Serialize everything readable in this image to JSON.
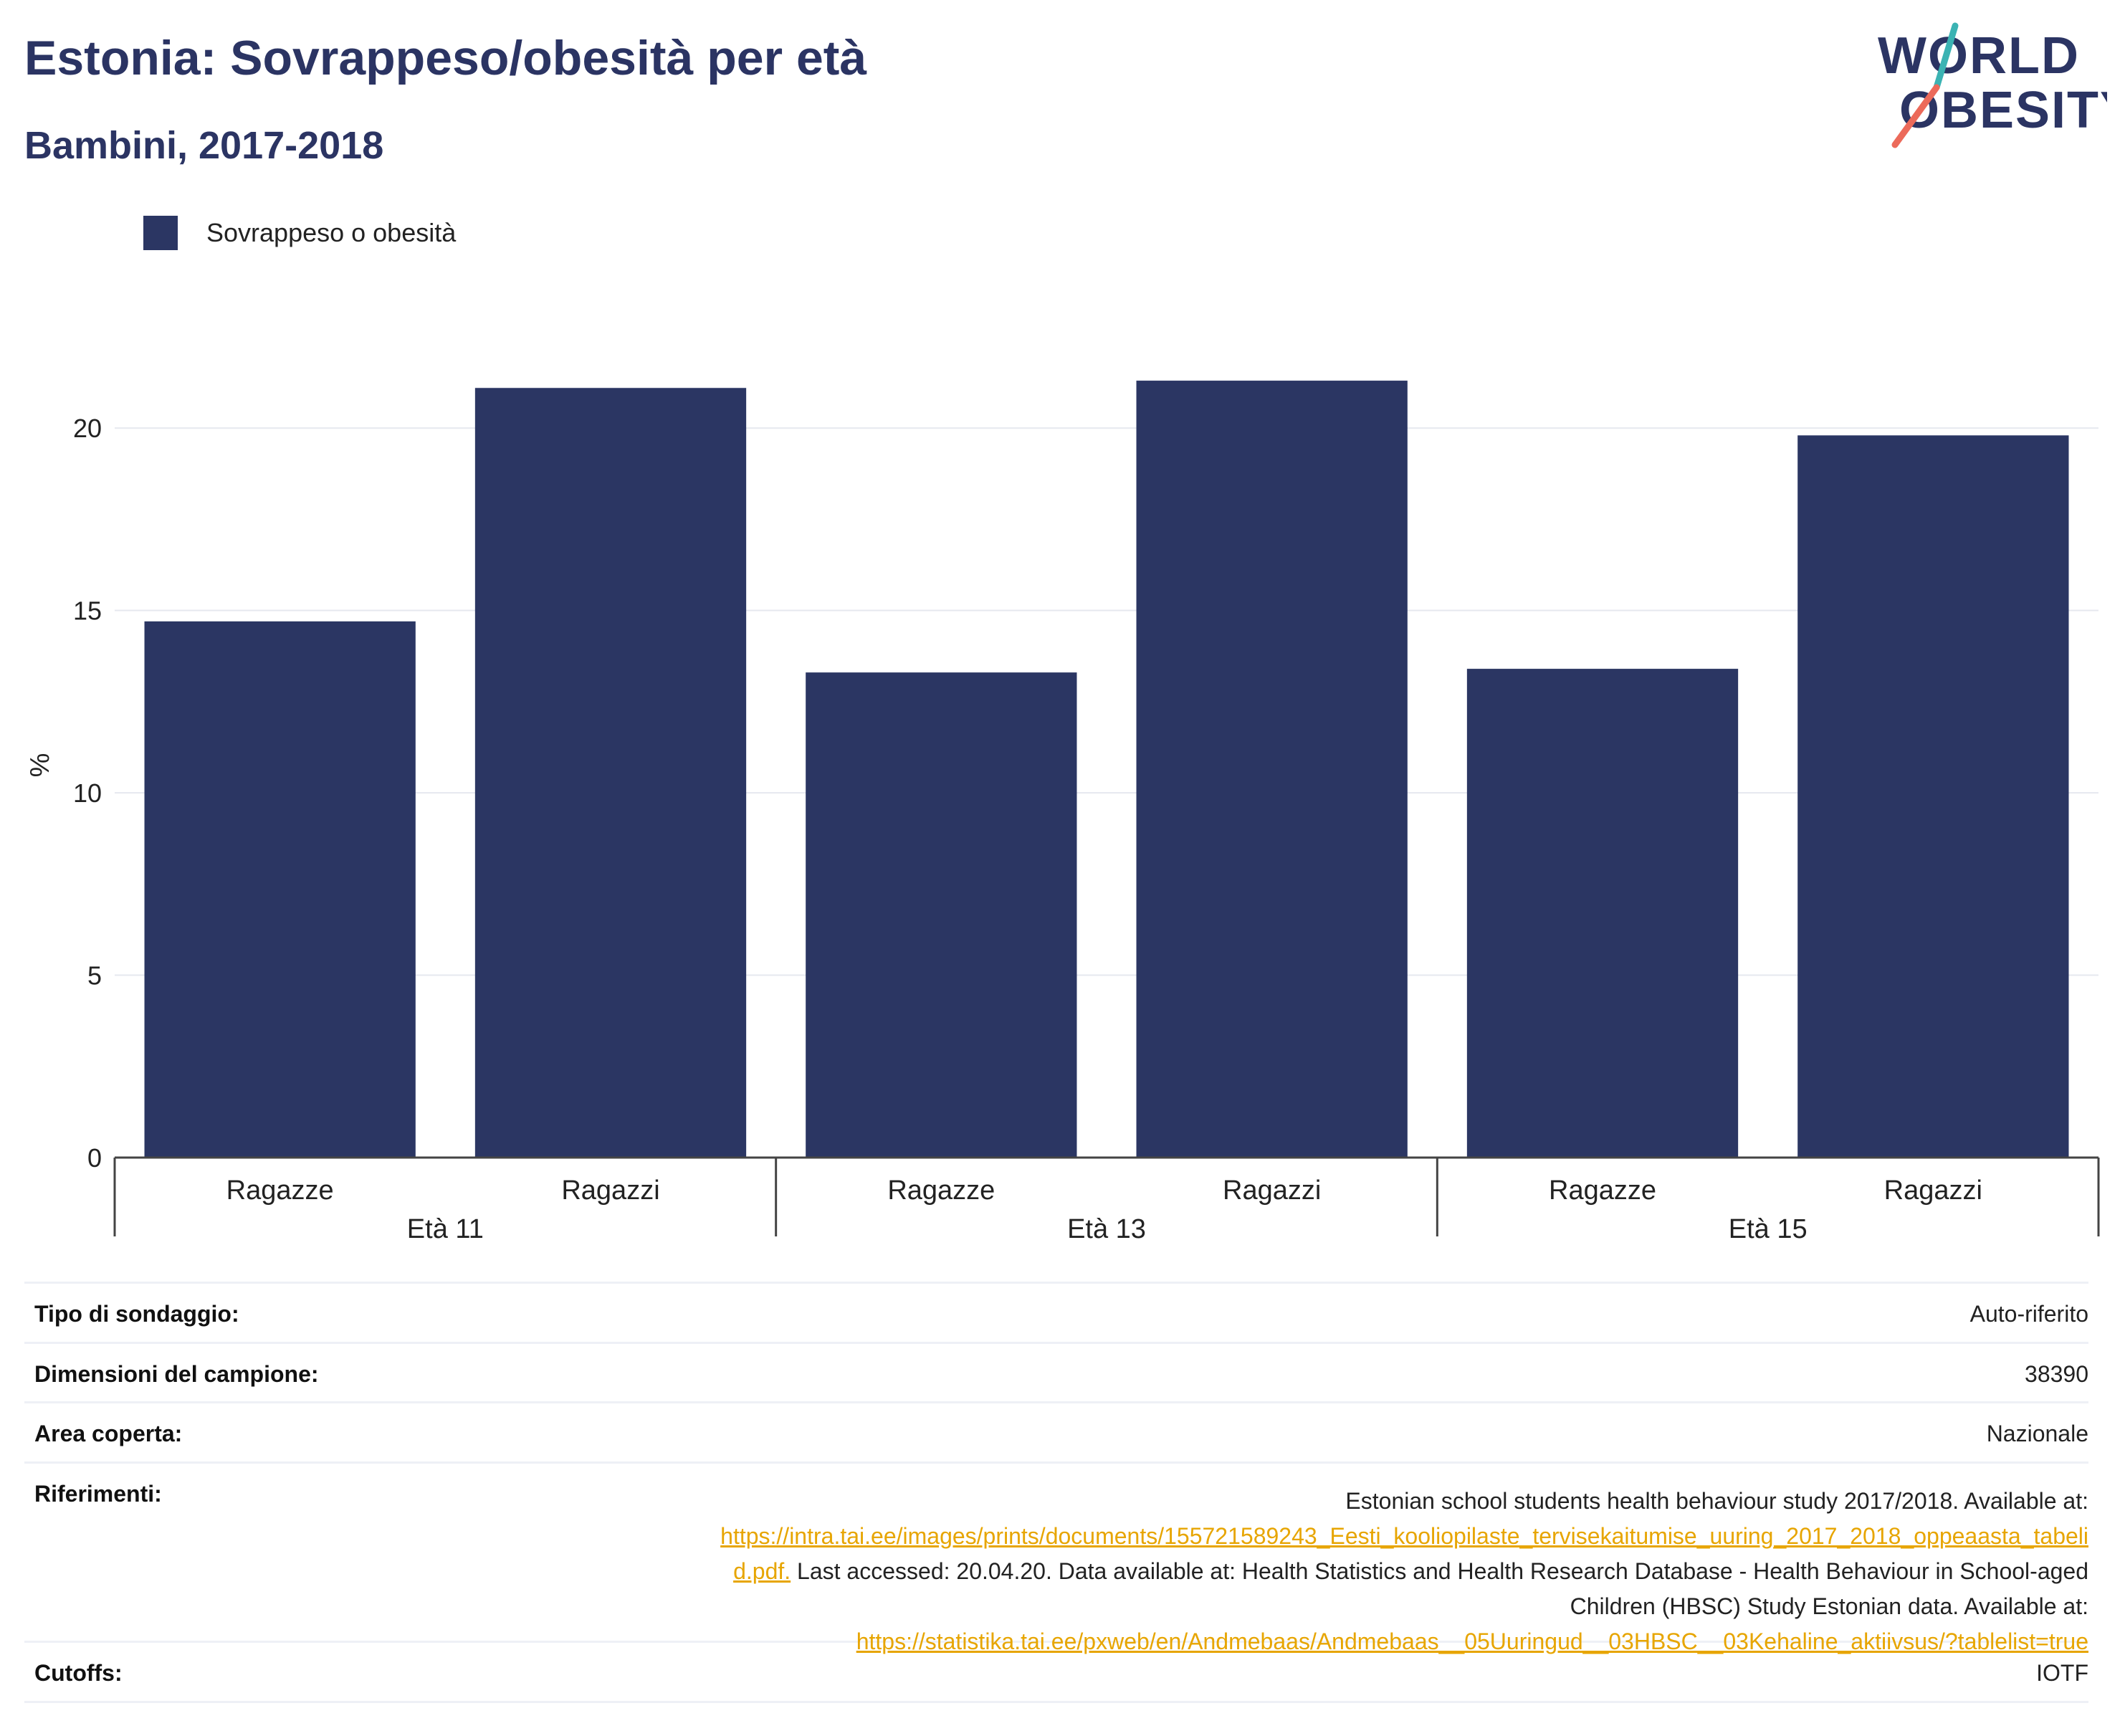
{
  "header": {
    "title": "Estonia: Sovrappeso/obesità per età",
    "subtitle": "Bambini, 2017-2018"
  },
  "logo": {
    "line1": "WORLD",
    "line2": "OBESITY"
  },
  "colors": {
    "bar": "#2b3663",
    "title": "#2b3463",
    "link": "#e7a500",
    "grid": "#e6e8ef"
  },
  "chart_data": {
    "type": "bar",
    "ylabel": "%",
    "ylim": [
      0,
      22.5
    ],
    "yticks": [
      0,
      5,
      10,
      15,
      20
    ],
    "grid": true,
    "legend_position": "top-left",
    "groups": [
      "Età 11",
      "Età 13",
      "Età 15"
    ],
    "categories": [
      "Ragazze",
      "Ragazzi",
      "Ragazze",
      "Ragazzi",
      "Ragazze",
      "Ragazzi"
    ],
    "series": [
      {
        "name": "Sovrappeso o obesità",
        "values": [
          14.7,
          21.1,
          13.3,
          21.3,
          13.4,
          19.8
        ]
      }
    ]
  },
  "table": {
    "rows": [
      {
        "key": "Tipo di sondaggio:",
        "value": "Auto-riferito"
      },
      {
        "key": "Dimensioni del campione:",
        "value": "38390"
      },
      {
        "key": "Area coperta:",
        "value": "Nazionale"
      }
    ],
    "references": {
      "key": "Riferimenti:",
      "text1": "Estonian school students health behaviour study 2017/2018. Available at:",
      "link1a": "https://intra.tai.ee/images/prints/documents/155721589243_Eesti_kooliopilaste_tervisekaitumise_uuring_2017_2018_oppeaasta_tabeli",
      "link1b": "d.pdf.",
      "text2a": " Last accessed: 20.04.20. Data available at: Health Statistics and Health Research Database - Health Behaviour in School-aged",
      "text2b": "Children (HBSC) Study Estonian data. Available at:",
      "link2": "https://statistika.tai.ee/pxweb/en/Andmebaas/Andmebaas__05Uuringud__03HBSC__03Kehaline_aktiivsus/?tablelist=true"
    },
    "cutoffs": {
      "key": "Cutoffs:",
      "value": "IOTF"
    }
  }
}
